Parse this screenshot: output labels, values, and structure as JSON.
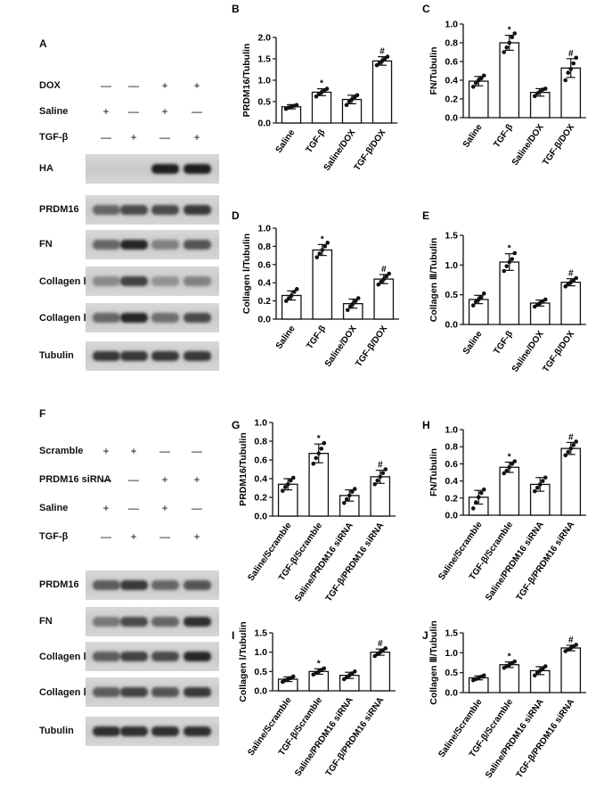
{
  "panels": {
    "A": {
      "letter": "A",
      "conditions": [
        {
          "name": "DOX",
          "signs": [
            "—",
            "—",
            "+",
            "+"
          ]
        },
        {
          "name": "Saline",
          "signs": [
            "+",
            "—",
            "+",
            "—"
          ]
        },
        {
          "name": "TGF-β",
          "signs": [
            "—",
            "+",
            "—",
            "+"
          ]
        }
      ],
      "blots": [
        {
          "name": "HA",
          "intensity": [
            0.0,
            0.0,
            0.95,
            0.95
          ]
        },
        {
          "name": "PRDM16",
          "intensity": [
            0.55,
            0.7,
            0.7,
            0.8
          ]
        },
        {
          "name": "FN",
          "intensity": [
            0.55,
            0.9,
            0.4,
            0.65
          ]
        },
        {
          "name": "Collagen Ⅰ",
          "intensity": [
            0.35,
            0.75,
            0.3,
            0.4
          ]
        },
        {
          "name": "Collagen Ⅲ",
          "intensity": [
            0.55,
            0.9,
            0.5,
            0.7
          ]
        },
        {
          "name": "Tubulin",
          "intensity": [
            0.8,
            0.8,
            0.8,
            0.8
          ]
        }
      ]
    },
    "F": {
      "letter": "F",
      "conditions": [
        {
          "name": "Scramble",
          "signs": [
            "+",
            "+",
            "—",
            "—"
          ]
        },
        {
          "name": "PRDM16 siRNA",
          "signs": [
            "—",
            "—",
            "+",
            "+"
          ]
        },
        {
          "name": "Saline",
          "signs": [
            "+",
            "—",
            "+",
            "—"
          ]
        },
        {
          "name": "TGF-β",
          "signs": [
            "—",
            "+",
            "—",
            "+"
          ]
        }
      ],
      "blots": [
        {
          "name": "PRDM16",
          "intensity": [
            0.6,
            0.8,
            0.55,
            0.65
          ]
        },
        {
          "name": "FN",
          "intensity": [
            0.45,
            0.7,
            0.55,
            0.85
          ]
        },
        {
          "name": "Collagen Ⅰ",
          "intensity": [
            0.6,
            0.75,
            0.7,
            0.9
          ]
        },
        {
          "name": "Collagen Ⅲ",
          "intensity": [
            0.6,
            0.75,
            0.65,
            0.8
          ]
        },
        {
          "name": "Tubulin",
          "intensity": [
            0.85,
            0.85,
            0.85,
            0.85
          ]
        }
      ]
    }
  },
  "chart_data": [
    {
      "letter": "B",
      "type": "bar",
      "ylabel": "PRDM16/Tubulin",
      "ylim": [
        0,
        2.0
      ],
      "yticks": [
        "0.0",
        "0.5",
        "1.0",
        "1.5",
        "2.0"
      ],
      "categories": [
        "Saline",
        "TGF-β",
        "Saline/DOX",
        "TGF-β/DOX"
      ],
      "values": [
        0.38,
        0.72,
        0.55,
        1.45
      ],
      "errors": [
        0.05,
        0.08,
        0.1,
        0.1
      ],
      "sig": [
        "",
        "*",
        "",
        "#"
      ],
      "points": [
        [
          0.33,
          0.36,
          0.38,
          0.4,
          0.42
        ],
        [
          0.62,
          0.68,
          0.72,
          0.75,
          0.8
        ],
        [
          0.42,
          0.5,
          0.55,
          0.6,
          0.65
        ],
        [
          1.35,
          1.4,
          1.45,
          1.5,
          1.55
        ]
      ]
    },
    {
      "letter": "C",
      "type": "bar",
      "ylabel": "FN/Tubulin",
      "ylim": [
        0,
        1.0
      ],
      "yticks": [
        "0.0",
        "0.2",
        "0.4",
        "0.6",
        "0.8",
        "1.0"
      ],
      "categories": [
        "Saline",
        "TGF-β",
        "Saline/DOX",
        "TGF-β/DOX"
      ],
      "values": [
        0.39,
        0.8,
        0.27,
        0.53
      ],
      "errors": [
        0.05,
        0.08,
        0.04,
        0.1
      ],
      "sig": [
        "",
        "*",
        "",
        "#"
      ],
      "points": [
        [
          0.33,
          0.37,
          0.4,
          0.42,
          0.45
        ],
        [
          0.7,
          0.75,
          0.8,
          0.86,
          0.9
        ],
        [
          0.23,
          0.26,
          0.28,
          0.3,
          0.31
        ],
        [
          0.4,
          0.48,
          0.52,
          0.58,
          0.64
        ]
      ]
    },
    {
      "letter": "D",
      "type": "bar",
      "ylabel": "Collagen Ⅰ/Tubulin",
      "ylim": [
        0,
        1.0
      ],
      "yticks": [
        "0.0",
        "0.2",
        "0.4",
        "0.6",
        "0.8",
        "1.0"
      ],
      "categories": [
        "Saline",
        "TGF-β",
        "Saline/DOX",
        "TGF-β/DOX"
      ],
      "values": [
        0.26,
        0.76,
        0.17,
        0.44
      ],
      "errors": [
        0.05,
        0.06,
        0.05,
        0.05
      ],
      "sig": [
        "",
        "*",
        "",
        "#"
      ],
      "points": [
        [
          0.2,
          0.23,
          0.26,
          0.3,
          0.33
        ],
        [
          0.68,
          0.72,
          0.76,
          0.8,
          0.84
        ],
        [
          0.1,
          0.14,
          0.17,
          0.2,
          0.23
        ],
        [
          0.38,
          0.41,
          0.44,
          0.47,
          0.5
        ]
      ]
    },
    {
      "letter": "E",
      "type": "bar",
      "ylabel": "Collagen Ⅲ/Tubulin",
      "ylim": [
        0,
        1.5
      ],
      "yticks": [
        "0.0",
        "0.5",
        "1.0",
        "1.5"
      ],
      "categories": [
        "Saline",
        "TGF-β",
        "Saline/DOX",
        "TGF-β/DOX"
      ],
      "values": [
        0.42,
        1.05,
        0.36,
        0.71
      ],
      "errors": [
        0.07,
        0.14,
        0.05,
        0.06
      ],
      "sig": [
        "",
        "*",
        "",
        "#"
      ],
      "points": [
        [
          0.32,
          0.38,
          0.42,
          0.46,
          0.52
        ],
        [
          0.9,
          0.98,
          1.05,
          1.1,
          1.2
        ],
        [
          0.3,
          0.33,
          0.36,
          0.39,
          0.42
        ],
        [
          0.64,
          0.68,
          0.71,
          0.74,
          0.78
        ]
      ]
    },
    {
      "letter": "G",
      "type": "bar",
      "ylabel": "PRDM16/Tubulin",
      "ylim": [
        0,
        1.0
      ],
      "yticks": [
        "0.0",
        "0.2",
        "0.4",
        "0.6",
        "0.8",
        "1.0"
      ],
      "categories": [
        "Saline/Scramble",
        "TGF-β/Scramble",
        "Saline/PRDM16 siRNA",
        "TGF-β/PRDM16 siRNA"
      ],
      "values": [
        0.34,
        0.67,
        0.22,
        0.42
      ],
      "errors": [
        0.06,
        0.1,
        0.06,
        0.07
      ],
      "sig": [
        "",
        "*",
        "",
        "#"
      ],
      "points": [
        [
          0.27,
          0.31,
          0.34,
          0.38,
          0.41
        ],
        [
          0.56,
          0.62,
          0.67,
          0.72,
          0.78
        ],
        [
          0.14,
          0.18,
          0.22,
          0.26,
          0.29
        ],
        [
          0.34,
          0.38,
          0.42,
          0.46,
          0.5
        ]
      ]
    },
    {
      "letter": "H",
      "type": "bar",
      "ylabel": "FN/Tubulin",
      "ylim": [
        0,
        1.0
      ],
      "yticks": [
        "0.0",
        "0.2",
        "0.4",
        "0.6",
        "0.8",
        "1.0"
      ],
      "categories": [
        "Saline/Scramble",
        "TGF-β/Scramble",
        "Saline/PRDM16 siRNA",
        "TGF-β/PRDM16 siRNA"
      ],
      "values": [
        0.21,
        0.56,
        0.36,
        0.78
      ],
      "errors": [
        0.08,
        0.06,
        0.08,
        0.07
      ],
      "sig": [
        "",
        "*",
        "",
        "#"
      ],
      "points": [
        [
          0.08,
          0.15,
          0.21,
          0.26,
          0.3
        ],
        [
          0.49,
          0.52,
          0.56,
          0.6,
          0.63
        ],
        [
          0.28,
          0.32,
          0.36,
          0.4,
          0.44
        ],
        [
          0.7,
          0.74,
          0.78,
          0.82,
          0.86
        ]
      ]
    },
    {
      "letter": "I",
      "type": "bar",
      "ylabel": "Collagen Ⅰ/Tubulin",
      "ylim": [
        0,
        1.5
      ],
      "yticks": [
        "0.0",
        "0.5",
        "1.0",
        "1.5"
      ],
      "categories": [
        "Saline/Scramble",
        "TGF-β/Scramble",
        "Saline/PRDM16 siRNA",
        "TGF-β/PRDM16 siRNA"
      ],
      "values": [
        0.3,
        0.5,
        0.4,
        1.0
      ],
      "errors": [
        0.06,
        0.07,
        0.08,
        0.08
      ],
      "sig": [
        "",
        "*",
        "",
        "#"
      ],
      "points": [
        [
          0.23,
          0.27,
          0.3,
          0.33,
          0.37
        ],
        [
          0.42,
          0.46,
          0.5,
          0.54,
          0.58
        ],
        [
          0.3,
          0.35,
          0.4,
          0.45,
          0.5
        ],
        [
          0.9,
          0.95,
          1.0,
          1.05,
          1.1
        ]
      ]
    },
    {
      "letter": "J",
      "type": "bar",
      "ylabel": "Collagen Ⅲ/Tubulin",
      "ylim": [
        0,
        1.5
      ],
      "yticks": [
        "0.0",
        "0.5",
        "1.0",
        "1.5"
      ],
      "categories": [
        "Saline/Scramble",
        "TGF-β/Scramble",
        "Saline/PRDM16 siRNA",
        "TGF-β/PRDM16 siRNA"
      ],
      "values": [
        0.37,
        0.7,
        0.55,
        1.12
      ],
      "errors": [
        0.05,
        0.07,
        0.1,
        0.07
      ],
      "sig": [
        "",
        "*",
        "",
        "#"
      ],
      "points": [
        [
          0.31,
          0.34,
          0.37,
          0.4,
          0.43
        ],
        [
          0.62,
          0.66,
          0.7,
          0.74,
          0.78
        ],
        [
          0.43,
          0.5,
          0.55,
          0.6,
          0.66
        ],
        [
          1.04,
          1.08,
          1.12,
          1.16,
          1.2
        ]
      ]
    }
  ]
}
